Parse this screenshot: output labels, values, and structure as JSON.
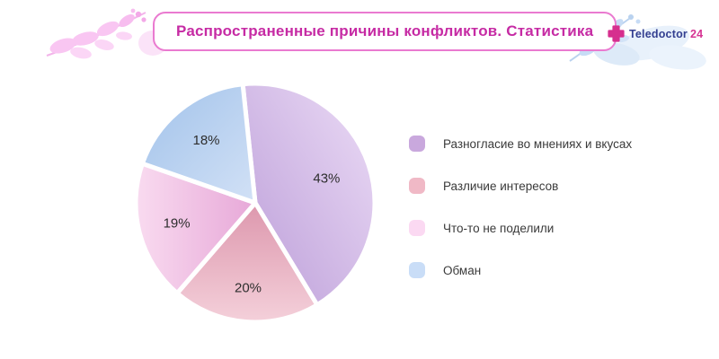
{
  "header": {
    "title": "Распространенные причины конфликтов. Статистика",
    "title_color": "#c62ba4",
    "logo": {
      "name": "Teledoctor",
      "suffix": "24",
      "name_color": "#333f90",
      "suffix_color": "#d63493",
      "cross_color": "#d62f8e"
    }
  },
  "chart_data": {
    "type": "pie",
    "title": "Распространенные причины конфликтов. Статистика",
    "label_format": "percent",
    "legend_position": "right",
    "start_angle_deg": -6,
    "direction": "clockwise",
    "gap_color": "#ffffff",
    "value_label_color": "#2e2e2e",
    "categories": [
      "Разногласие во мнениях и вкусах",
      "Различие интересов",
      "Что-то не поделили",
      "Обман"
    ],
    "values": [
      43,
      20,
      19,
      18
    ],
    "slices": [
      {
        "label": "Разногласие во мнениях и вкусах",
        "value": 43,
        "display_value": "43%",
        "color_dark": "#bb9dd8",
        "color_light": "#ecdcf6",
        "legend_color": "#c9a8dd"
      },
      {
        "label": "Различие интересов",
        "value": 20,
        "display_value": "20%",
        "color_dark": "#dd97ad",
        "color_light": "#f4d0da",
        "legend_color": "#f0b9c6"
      },
      {
        "label": "Что-то не поделили",
        "value": 19,
        "display_value": "19%",
        "color_dark": "#e7a8d8",
        "color_light": "#f9dbf0",
        "legend_color": "#fbd9f2"
      },
      {
        "label": "Обман",
        "value": 18,
        "display_value": "18%",
        "color_dark": "#a1c2ea",
        "color_light": "#d2e1f6",
        "legend_color": "#c9ddf7"
      }
    ]
  }
}
